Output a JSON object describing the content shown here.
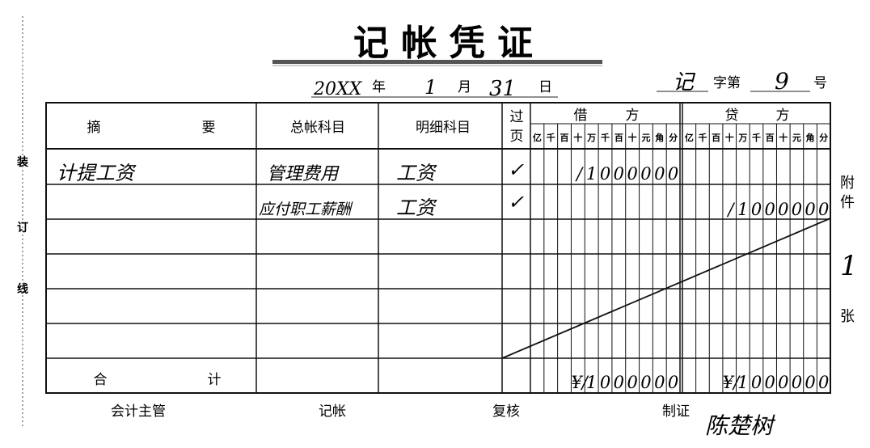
{
  "title": "记 帐 凭 证",
  "binding": {
    "chars": [
      "装",
      "订",
      "线"
    ]
  },
  "date": {
    "year": "20XX",
    "year_label": "年",
    "month": "1",
    "month_label": "月",
    "day": "31",
    "day_label": "日"
  },
  "voucher_no": {
    "type": "记",
    "prefix": "字第",
    "number": "9",
    "suffix": "号"
  },
  "headers": {
    "summary_1": "摘",
    "summary_2": "要",
    "general_account": "总帐科目",
    "detail_account": "明细科目",
    "posted_1": "过",
    "posted_2": "页",
    "debit_1": "借",
    "debit_2": "方",
    "credit_1": "贷",
    "credit_2": "方",
    "digits": [
      "亿",
      "千",
      "百",
      "十",
      "万",
      "千",
      "百",
      "十",
      "元",
      "角",
      "分"
    ]
  },
  "rows": [
    {
      "summary": "计提工资",
      "general_account": "管理费用",
      "detail_account": "工资",
      "posted": "✓",
      "debit": "10000.00",
      "credit": ""
    },
    {
      "summary": "",
      "general_account": "应付职工薪酬",
      "detail_account": "工资",
      "posted": "✓",
      "debit": "",
      "credit": "10000.00"
    }
  ],
  "total": {
    "label_1": "合",
    "label_2": "计",
    "debit": "10000.00",
    "credit": "10000.00",
    "currency": "¥"
  },
  "attachments": {
    "label_1": "附",
    "label_2": "件",
    "count": "1",
    "unit": "张"
  },
  "footer": {
    "supervisor": "会计主管",
    "bookkeeper": "记帐",
    "reviewer": "复核",
    "preparer": "制证",
    "preparer_signature": "陈楚树"
  }
}
